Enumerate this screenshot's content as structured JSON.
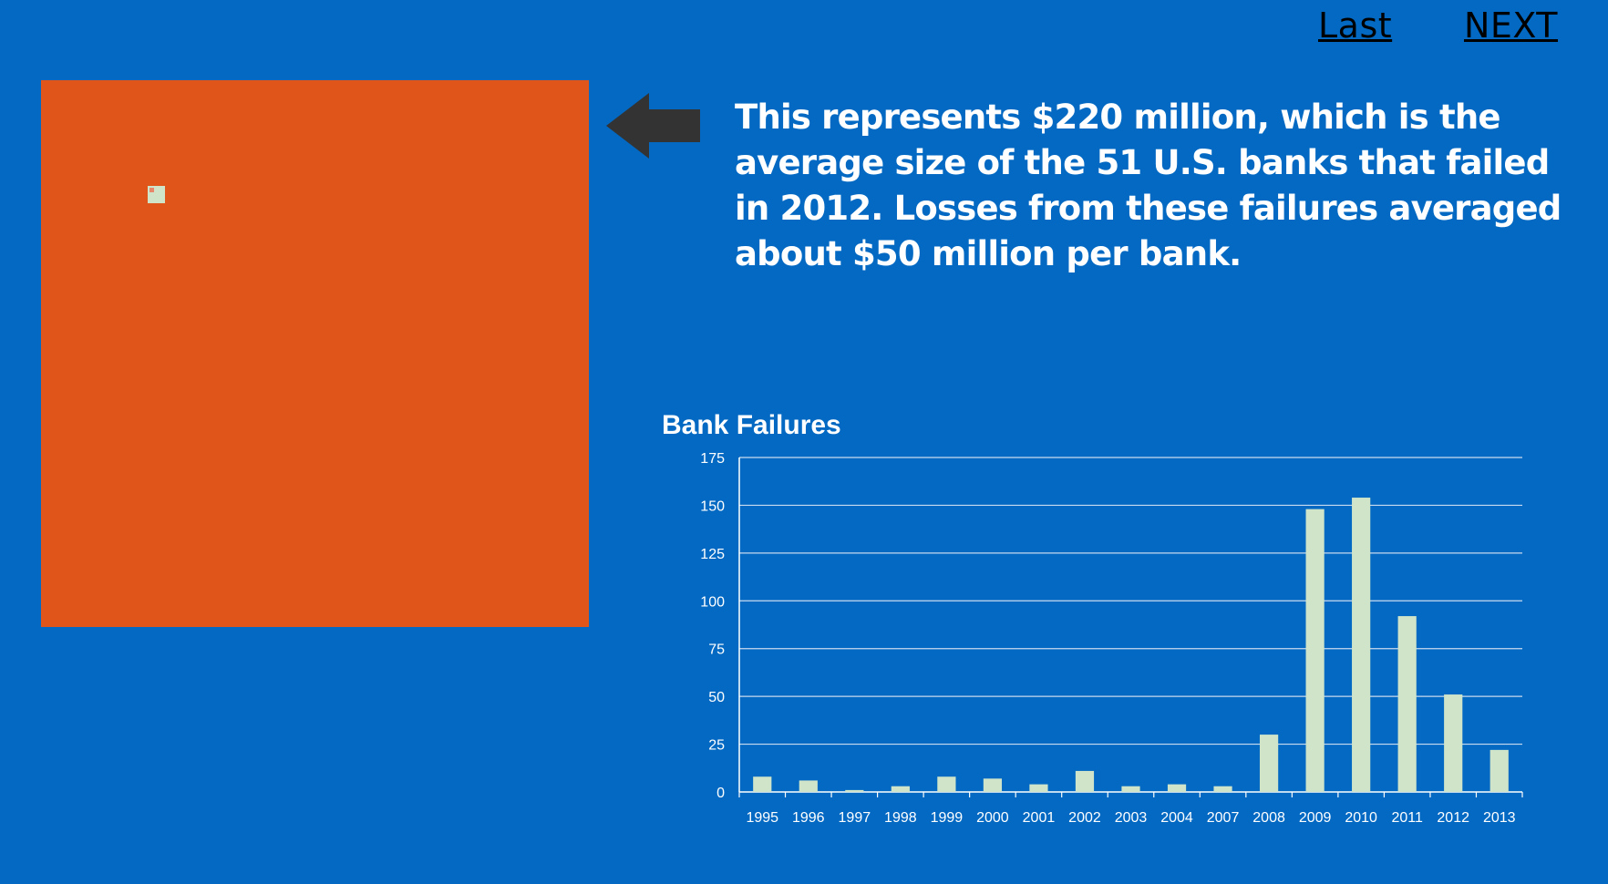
{
  "nav": {
    "last_label": "Last",
    "next_label": "NEXT"
  },
  "description": "This represents $220 million, which is the average size of the 51 U.S. banks that failed in 2012. Losses from these failures averaged about $50 million per bank.",
  "colors": {
    "background": "#0369c3",
    "square": "#e05519",
    "bar": "#cfe4c8",
    "arrow": "#333333",
    "nav_text": "#000000"
  },
  "icons": {
    "pointer": "arrow-left-icon"
  },
  "chart_data": {
    "type": "bar",
    "title": "Bank Failures",
    "xlabel": "",
    "ylabel": "",
    "categories": [
      "1995",
      "1996",
      "1997",
      "1998",
      "1999",
      "2000",
      "2001",
      "2002",
      "2003",
      "2004",
      "2007",
      "2008",
      "2009",
      "2010",
      "2011",
      "2012",
      "2013"
    ],
    "values": [
      8,
      6,
      1,
      3,
      8,
      7,
      4,
      11,
      3,
      4,
      3,
      30,
      148,
      154,
      92,
      51,
      22
    ],
    "ylim": [
      0,
      175
    ],
    "yticks": [
      0,
      25,
      50,
      75,
      100,
      125,
      150,
      175
    ],
    "grid": true,
    "legend": "none"
  }
}
